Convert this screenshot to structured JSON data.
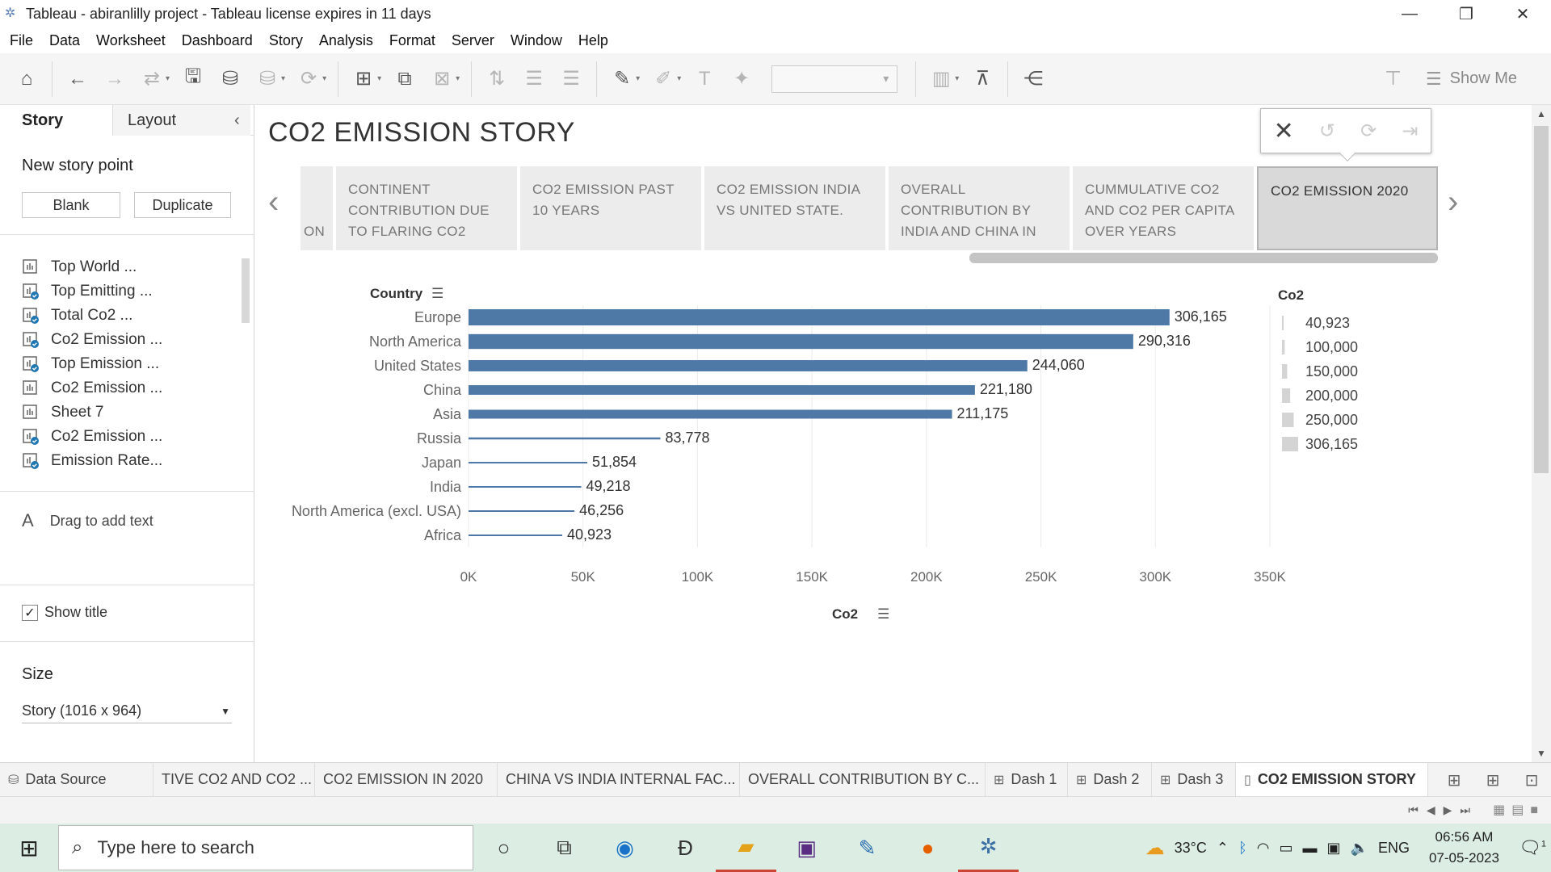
{
  "window": {
    "title": "Tableau - abiranlilly project - Tableau license expires in 11 days",
    "minimize": "—",
    "restore": "❐",
    "close": "✕"
  },
  "menu": [
    "File",
    "Data",
    "Worksheet",
    "Dashboard",
    "Story",
    "Analysis",
    "Format",
    "Server",
    "Window",
    "Help"
  ],
  "toolbar": {
    "show_me": "Show Me",
    "icons": [
      "home-icon",
      "back-icon",
      "forward-icon",
      "save-icon",
      "new-datasource-icon",
      "refresh-icon",
      "new-worksheet-icon",
      "duplicate-icon",
      "clear-icon",
      "swap-icon",
      "sort-asc-icon",
      "sort-desc-icon",
      "highlight-icon",
      "annotate-icon",
      "labels-icon",
      "pin-icon",
      "fit-icon",
      "presentation-icon",
      "share-icon"
    ]
  },
  "sidebar": {
    "tab_story": "Story",
    "tab_layout": "Layout",
    "new_story_point": "New story point",
    "blank": "Blank",
    "duplicate": "Duplicate",
    "sheets": [
      {
        "label": "Top World ...",
        "type": "sheet"
      },
      {
        "label": "Top Emitting ...",
        "type": "dashboard"
      },
      {
        "label": "Total Co2 ...",
        "type": "dashboard"
      },
      {
        "label": "Co2 Emission ...",
        "type": "dashboard"
      },
      {
        "label": "Top Emission ...",
        "type": "dashboard"
      },
      {
        "label": "Co2 Emission ...",
        "type": "sheet"
      },
      {
        "label": "Sheet 7",
        "type": "sheet"
      },
      {
        "label": "Co2 Emission ...",
        "type": "dashboard"
      },
      {
        "label": "Emission Rate...",
        "type": "dashboard"
      }
    ],
    "drag_text": "Drag to add text",
    "drag_icon": "A",
    "show_title": "Show title",
    "show_title_checked": true,
    "size_label": "Size",
    "size_value": "Story (1016 x 964)"
  },
  "story": {
    "title": "CO2 EMISSION STORY",
    "points": [
      {
        "label": "ON",
        "active": false
      },
      {
        "label": "CONTINENT CONTRIBUTION DUE TO FLARING CO2",
        "active": false
      },
      {
        "label": "CO2 EMISSION PAST 10 YEARS",
        "active": false
      },
      {
        "label": "CO2 EMISSION INDIA VS UNITED STATE.",
        "active": false
      },
      {
        "label": "OVERALL CONTRIBUTION BY INDIA AND CHINA IN",
        "active": false
      },
      {
        "label": "CUMMULATIVE CO2 AND CO2 PER CAPITA OVER YEARS",
        "active": false
      },
      {
        "label": "CO2 EMISSION 2020",
        "active": true
      }
    ]
  },
  "chart_data": {
    "type": "bar",
    "orientation": "horizontal",
    "ylabel": "Country",
    "xlabel": "Co2",
    "categories": [
      "Europe",
      "North America",
      "United States",
      "China",
      "Asia",
      "Russia",
      "Japan",
      "India",
      "North America (excl. USA)",
      "Africa"
    ],
    "values": [
      306165,
      290316,
      244060,
      221180,
      211175,
      83778,
      51854,
      49218,
      46256,
      40923
    ],
    "value_labels": [
      "306,165",
      "290,316",
      "244,060",
      "221,180",
      "211,175",
      "83,778",
      "51,854",
      "49,218",
      "46,256",
      "40,923"
    ],
    "xlim": [
      0,
      350000
    ],
    "xticks": [
      0,
      50000,
      100000,
      150000,
      200000,
      250000,
      300000,
      350000
    ],
    "xtick_labels": [
      "0K",
      "50K",
      "100K",
      "150K",
      "200K",
      "250K",
      "300K",
      "350K"
    ],
    "bar_color": "#4e79a7",
    "size_legend": {
      "title": "Co2",
      "entries": [
        "40,923",
        "100,000",
        "150,000",
        "200,000",
        "250,000",
        "306,165"
      ],
      "values": [
        40923,
        100000,
        150000,
        200000,
        250000,
        306165
      ]
    },
    "grid": true
  },
  "bottom_tabs": [
    {
      "label": "Data Source",
      "icon": "datasource-icon",
      "active": false
    },
    {
      "label": "TIVE CO2 AND CO2 ...",
      "icon": "",
      "active": false
    },
    {
      "label": "CO2 EMISSION IN 2020",
      "icon": "",
      "active": false
    },
    {
      "label": "CHINA VS INDIA INTERNAL FAC...",
      "icon": "",
      "active": false
    },
    {
      "label": "OVERALL CONTRIBUTION BY C...",
      "icon": "",
      "active": false
    },
    {
      "label": "Dash 1",
      "icon": "dashboard-icon",
      "active": false
    },
    {
      "label": "Dash 2",
      "icon": "dashboard-icon",
      "active": false
    },
    {
      "label": "Dash 3",
      "icon": "dashboard-icon",
      "active": false
    },
    {
      "label": "CO2 EMISSION STORY",
      "icon": "story-icon",
      "active": true
    }
  ],
  "taskbar": {
    "search_placeholder": "Type here to search",
    "weather": "33°C",
    "language": "ENG",
    "time": "06:56 AM",
    "date": "07-05-2023",
    "notifications": "1"
  }
}
